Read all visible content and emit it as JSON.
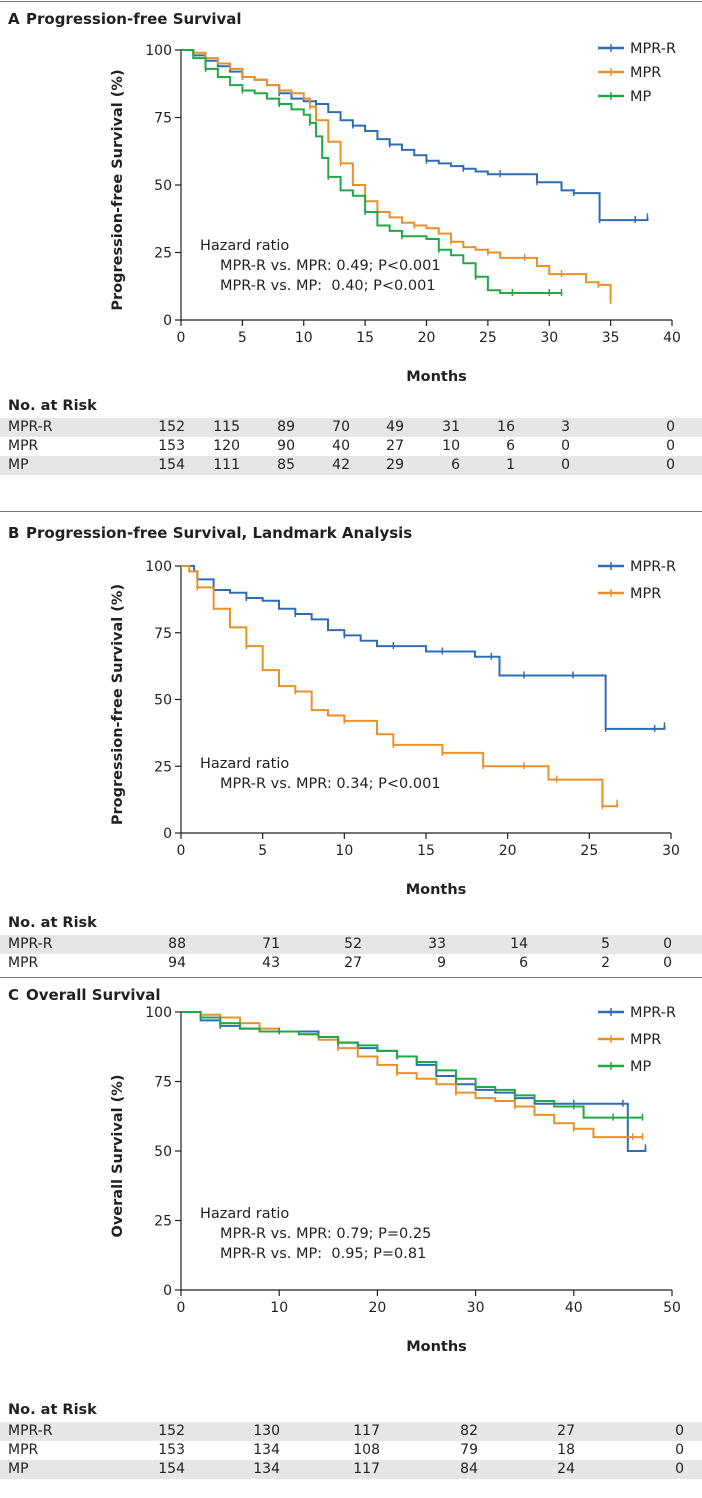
{
  "colors": {
    "MPR-R": "#2e6db4",
    "MPR": "#e8902b",
    "MP": "#21a845",
    "axis": "#231f20"
  },
  "panels": [
    {
      "letter": "A",
      "title": "Progression-free Survival",
      "chart_data": {
        "type": "line",
        "xlabel": "Months",
        "ylabel": "Progression-free Survival (%)",
        "xlim": [
          0,
          40
        ],
        "ylim": [
          0,
          100
        ],
        "xticks": [
          "0",
          "5",
          "10",
          "15",
          "20",
          "25",
          "30",
          "35",
          "40"
        ],
        "yticks": [
          "0",
          "25",
          "50",
          "75",
          "100"
        ],
        "legend_position": "top-right",
        "series": [
          {
            "name": "MPR-R",
            "color_key": "MPR-R",
            "x": [
              0,
              1,
              2,
              3,
              4,
              5,
              6,
              7,
              8,
              9,
              10,
              11,
              12,
              13,
              14,
              15,
              16,
              17,
              18,
              19,
              20,
              21,
              22,
              23,
              24,
              25,
              26,
              27,
              28,
              29,
              30,
              31,
              32,
              33,
              34,
              34.1,
              35,
              36,
              37,
              38
            ],
            "y": [
              100,
              98,
              96,
              94,
              92,
              90,
              89,
              87,
              84,
              82,
              81,
              80,
              77,
              74,
              72,
              70,
              67,
              65,
              63,
              61,
              59,
              58,
              57,
              56,
              55,
              54,
              54,
              54,
              54,
              51,
              51,
              48,
              47,
              47,
              47,
              37,
              37,
              37,
              37,
              38
            ]
          },
          {
            "name": "MPR",
            "color_key": "MPR",
            "x": [
              0,
              1,
              2,
              3,
              4,
              5,
              6,
              7,
              8,
              9,
              10,
              10.5,
              11,
              12,
              13,
              14,
              15,
              16,
              17,
              18,
              19,
              20,
              21,
              22,
              23,
              24,
              25,
              26,
              27,
              28,
              29,
              30,
              31,
              32,
              33,
              34,
              35
            ],
            "y": [
              100,
              99,
              97,
              95,
              93,
              90,
              89,
              87,
              85,
              84,
              82,
              79,
              74,
              66,
              58,
              50,
              44,
              40,
              38,
              36,
              35,
              34,
              32,
              29,
              27,
              26,
              25,
              23,
              23,
              23,
              20,
              17,
              17,
              17,
              14,
              13,
              7
            ]
          },
          {
            "name": "MP",
            "color_key": "MP",
            "x": [
              0,
              1,
              2,
              3,
              4,
              5,
              6,
              7,
              8,
              9,
              10,
              10.5,
              11,
              11.5,
              12,
              13,
              14,
              15,
              16,
              17,
              18,
              19,
              20,
              21,
              22,
              23,
              24,
              25,
              26,
              27,
              28,
              29,
              30,
              31
            ],
            "y": [
              100,
              97,
              93,
              90,
              87,
              85,
              84,
              82,
              80,
              78,
              76,
              73,
              68,
              60,
              53,
              48,
              46,
              40,
              35,
              33,
              31,
              31,
              30,
              26,
              24,
              21,
              16,
              11,
              10,
              10,
              10,
              10,
              10,
              10
            ]
          }
        ],
        "annotations": [
          "Hazard ratio",
          "MPR-R vs. MPR: 0.49; P<0.001",
          "MPR-R vs. MP:  0.40; P<0.001"
        ]
      },
      "risk": {
        "title": "No. at Risk",
        "rows": [
          {
            "name": "MPR-R",
            "values": [
              "152",
              "115",
              "89",
              "70",
              "49",
              "31",
              "16",
              "3",
              "0"
            ]
          },
          {
            "name": "MPR",
            "values": [
              "153",
              "120",
              "90",
              "40",
              "27",
              "10",
              "6",
              "0",
              "0"
            ]
          },
          {
            "name": "MP",
            "values": [
              "154",
              "111",
              "85",
              "42",
              "29",
              "6",
              "1",
              "0",
              "0"
            ]
          }
        ]
      }
    },
    {
      "letter": "B",
      "title": "Progression-free Survival, Landmark Analysis",
      "chart_data": {
        "type": "line",
        "xlabel": "Months",
        "ylabel": "Progression-free Survival (%)",
        "xlim": [
          0,
          30
        ],
        "ylim": [
          0,
          100
        ],
        "xticks": [
          "0",
          "5",
          "10",
          "15",
          "20",
          "25",
          "30"
        ],
        "yticks": [
          "0",
          "25",
          "50",
          "75",
          "100"
        ],
        "legend_position": "top-right",
        "series": [
          {
            "name": "MPR-R",
            "color_key": "MPR-R",
            "x": [
              0,
              0.8,
              1,
              2,
              3,
              4,
              5,
              6,
              7,
              8,
              9,
              10,
              11,
              12,
              13,
              14,
              15,
              16,
              17,
              18,
              19,
              19.5,
              20,
              21,
              22,
              23,
              24,
              25,
              25.8,
              26,
              27,
              28,
              29,
              29.6
            ],
            "y": [
              100,
              98,
              95,
              91,
              90,
              88,
              87,
              84,
              82,
              80,
              76,
              74,
              72,
              70,
              70,
              70,
              68,
              68,
              68,
              66,
              66,
              59,
              59,
              59,
              59,
              59,
              59,
              59,
              59,
              39,
              39,
              39,
              39,
              40
            ]
          },
          {
            "name": "MPR",
            "color_key": "MPR",
            "x": [
              0,
              0.5,
              1,
              2,
              3,
              4,
              5,
              6,
              7,
              8,
              9,
              10,
              11,
              12,
              13,
              14,
              15,
              16,
              17,
              18,
              18.5,
              19,
              20,
              21,
              22,
              22.5,
              23,
              24,
              25,
              25.8,
              26,
              26.7
            ],
            "y": [
              100,
              98,
              92,
              84,
              77,
              70,
              61,
              55,
              53,
              46,
              44,
              42,
              42,
              37,
              33,
              33,
              33,
              30,
              30,
              30,
              25,
              25,
              25,
              25,
              25,
              20,
              20,
              20,
              20,
              10,
              10,
              11
            ]
          }
        ],
        "annotations": [
          "Hazard ratio",
          "MPR-R vs. MPR: 0.34; P<0.001"
        ]
      },
      "risk": {
        "title": "No. at Risk",
        "rows": [
          {
            "name": "MPR-R",
            "values": [
              "88",
              "71",
              "52",
              "33",
              "14",
              "5",
              "0"
            ]
          },
          {
            "name": "MPR",
            "values": [
              "94",
              "43",
              "27",
              "9",
              "6",
              "2",
              "0"
            ]
          }
        ]
      }
    },
    {
      "letter": "C",
      "title": "Overall Survival",
      "chart_data": {
        "type": "line",
        "xlabel": "Months",
        "ylabel": "Overall Survival (%)",
        "xlim": [
          0,
          50
        ],
        "ylim": [
          0,
          100
        ],
        "xticks": [
          "0",
          "10",
          "20",
          "30",
          "40",
          "50"
        ],
        "yticks": [
          "0",
          "25",
          "50",
          "75",
          "100"
        ],
        "legend_position": "top-right",
        "series": [
          {
            "name": "MPR-R",
            "color_key": "MPR-R",
            "x": [
              0,
              2,
              4,
              6,
              8,
              10,
              12,
              14,
              16,
              18,
              20,
              22,
              24,
              26,
              28,
              30,
              32,
              34,
              36,
              38,
              40,
              42,
              44,
              45,
              45.5,
              47.3
            ],
            "y": [
              100,
              97,
              95,
              94,
              93,
              93,
              93,
              91,
              89,
              87,
              86,
              84,
              81,
              77,
              74,
              72,
              71,
              69,
              67,
              67,
              67,
              67,
              67,
              67,
              50,
              51
            ]
          },
          {
            "name": "MPR",
            "color_key": "MPR",
            "x": [
              0,
              2,
              4,
              6,
              8,
              10,
              12,
              14,
              16,
              18,
              20,
              22,
              24,
              26,
              28,
              30,
              32,
              34,
              36,
              38,
              40,
              42,
              44,
              46,
              47
            ],
            "y": [
              100,
              99,
              98,
              96,
              94,
              93,
              92,
              90,
              87,
              84,
              81,
              78,
              76,
              74,
              71,
              69,
              68,
              66,
              63,
              60,
              58,
              55,
              55,
              55,
              55
            ]
          },
          {
            "name": "MP",
            "color_key": "MP",
            "x": [
              0,
              2,
              4,
              6,
              8,
              10,
              12,
              14,
              16,
              18,
              20,
              22,
              24,
              26,
              28,
              30,
              32,
              34,
              36,
              38,
              40,
              41,
              42,
              44,
              46,
              47
            ],
            "y": [
              100,
              98,
              96,
              94,
              93,
              93,
              92,
              91,
              89,
              88,
              86,
              84,
              82,
              79,
              76,
              73,
              72,
              70,
              68,
              66,
              66,
              62,
              62,
              62,
              62,
              62
            ]
          }
        ],
        "annotations": [
          "Hazard ratio",
          "MPR-R vs. MPR: 0.79; P=0.25",
          "MPR-R vs. MP:  0.95; P=0.81"
        ]
      },
      "risk": {
        "title": "No. at Risk",
        "rows": [
          {
            "name": "MPR-R",
            "values": [
              "152",
              "130",
              "117",
              "82",
              "27",
              "0"
            ]
          },
          {
            "name": "MPR",
            "values": [
              "153",
              "134",
              "108",
              "79",
              "18",
              "0"
            ]
          },
          {
            "name": "MP",
            "values": [
              "154",
              "134",
              "117",
              "84",
              "24",
              "0"
            ]
          }
        ]
      }
    }
  ]
}
